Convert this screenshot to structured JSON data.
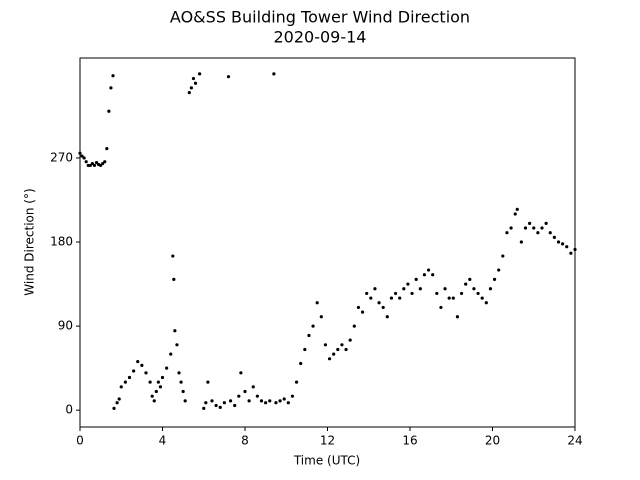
{
  "chart_data": {
    "type": "scatter",
    "title": "AO&SS Building Tower Wind Direction",
    "subtitle": "2020-09-14",
    "x_label": "Time (UTC)",
    "y_label": "Wind Direction (°)",
    "color": "#000000",
    "xlim": [
      0,
      24
    ],
    "xticks": [
      0,
      4,
      8,
      12,
      16,
      20,
      24
    ],
    "ylim": [
      -18,
      377
    ],
    "yticks": [
      0,
      90,
      180,
      270
    ],
    "x": [
      0.0,
      0.1,
      0.2,
      0.3,
      0.4,
      0.5,
      0.6,
      0.7,
      0.8,
      0.9,
      1.0,
      1.1,
      1.2,
      1.3,
      1.4,
      1.5,
      1.6,
      1.65,
      1.8,
      1.9,
      2.0,
      2.2,
      2.4,
      2.6,
      2.8,
      3.0,
      3.2,
      3.4,
      3.5,
      3.6,
      3.7,
      3.8,
      3.9,
      4.0,
      4.2,
      4.4,
      4.5,
      4.55,
      4.6,
      4.7,
      4.8,
      4.9,
      5.0,
      5.1,
      5.3,
      5.4,
      5.5,
      5.6,
      5.8,
      6.0,
      6.1,
      6.2,
      6.4,
      6.6,
      6.8,
      7.0,
      7.2,
      7.3,
      7.5,
      7.7,
      7.8,
      8.0,
      8.2,
      8.4,
      8.6,
      8.8,
      9.0,
      9.2,
      9.4,
      9.5,
      9.7,
      9.9,
      10.1,
      10.3,
      10.5,
      10.7,
      10.9,
      11.1,
      11.3,
      11.5,
      11.7,
      11.9,
      12.1,
      12.3,
      12.5,
      12.7,
      12.9,
      13.1,
      13.3,
      13.5,
      13.7,
      13.9,
      14.1,
      14.3,
      14.5,
      14.7,
      14.9,
      15.1,
      15.3,
      15.5,
      15.7,
      15.9,
      16.1,
      16.3,
      16.5,
      16.7,
      16.9,
      17.1,
      17.3,
      17.5,
      17.7,
      17.9,
      18.1,
      18.3,
      18.5,
      18.7,
      18.9,
      19.1,
      19.3,
      19.5,
      19.7,
      19.9,
      20.1,
      20.3,
      20.5,
      20.7,
      20.9,
      21.1,
      21.2,
      21.4,
      21.6,
      21.8,
      22.0,
      22.2,
      22.4,
      22.6,
      22.8,
      23.0,
      23.2,
      23.4,
      23.6,
      23.8,
      24.0
    ],
    "values": [
      275,
      272,
      270,
      266,
      262,
      262,
      264,
      262,
      265,
      263,
      262,
      264,
      266,
      280,
      320,
      345,
      358,
      2,
      8,
      12,
      25,
      30,
      35,
      42,
      52,
      48,
      40,
      30,
      15,
      10,
      20,
      30,
      25,
      35,
      45,
      60,
      165,
      140,
      85,
      70,
      40,
      30,
      20,
      10,
      340,
      345,
      355,
      350,
      360,
      2,
      8,
      30,
      10,
      5,
      3,
      8,
      357,
      10,
      5,
      15,
      40,
      20,
      10,
      25,
      15,
      10,
      8,
      10,
      360,
      8,
      10,
      12,
      8,
      15,
      30,
      50,
      65,
      80,
      90,
      115,
      100,
      70,
      55,
      60,
      65,
      70,
      65,
      75,
      90,
      110,
      105,
      125,
      120,
      130,
      115,
      110,
      100,
      120,
      125,
      120,
      130,
      135,
      125,
      140,
      130,
      145,
      150,
      145,
      125,
      110,
      130,
      120,
      120,
      100,
      125,
      135,
      140,
      130,
      125,
      120,
      115,
      130,
      140,
      150,
      165,
      190,
      195,
      210,
      215,
      180,
      195,
      200,
      195,
      190,
      195,
      200,
      190,
      185,
      180,
      178,
      175,
      168,
      172
    ]
  }
}
